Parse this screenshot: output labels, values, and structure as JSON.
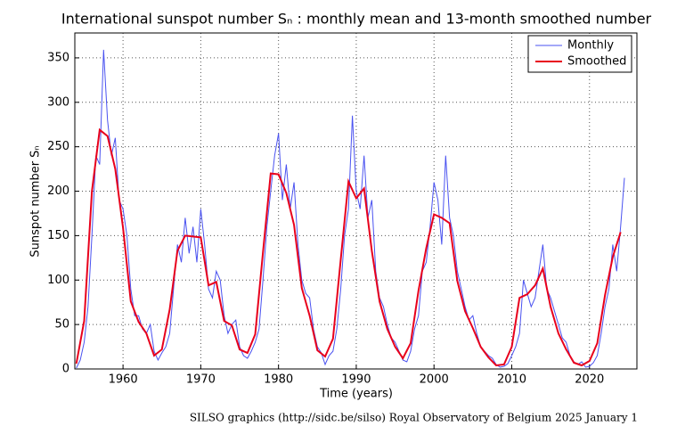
{
  "chart_data": {
    "type": "line",
    "title": "International sunspot number Sₙ : monthly mean and 13-month smoothed number",
    "x_label": "Time (years)",
    "y_label": "Sunspot number Sₙ",
    "footer": "SILSO graphics (http://sidc.be/silso)  Royal Observatory of Belgium  2025 January 1",
    "xlim": [
      1953.8,
      2026.1
    ],
    "ylim": [
      0,
      378
    ],
    "xticks": [
      1960,
      1970,
      1980,
      1990,
      2000,
      2010,
      2020
    ],
    "yticks": [
      0,
      50,
      100,
      150,
      200,
      250,
      300,
      350
    ],
    "grid": true,
    "legend": "upper right",
    "series": [
      {
        "name": "Monthly",
        "color": "#4a52f0",
        "x": [
          1954,
          1954.5,
          1955,
          1955.5,
          1956,
          1956.5,
          1957,
          1957.5,
          1958,
          1958.5,
          1959,
          1959.5,
          1960,
          1960.5,
          1961,
          1961.5,
          1962,
          1962.5,
          1963,
          1963.5,
          1964,
          1964.5,
          1965,
          1965.5,
          1966,
          1966.5,
          1967,
          1967.5,
          1968,
          1968.5,
          1969,
          1969.5,
          1970,
          1970.5,
          1971,
          1971.5,
          1972,
          1972.5,
          1973,
          1973.5,
          1974,
          1974.5,
          1975,
          1975.5,
          1976,
          1976.5,
          1977,
          1977.5,
          1978,
          1978.5,
          1979,
          1979.5,
          1980,
          1980.5,
          1981,
          1981.5,
          1982,
          1982.5,
          1983,
          1983.5,
          1984,
          1984.5,
          1985,
          1985.5,
          1986,
          1986.5,
          1987,
          1987.5,
          1988,
          1988.5,
          1989,
          1989.5,
          1990,
          1990.5,
          1991,
          1991.5,
          1992,
          1992.5,
          1993,
          1993.5,
          1994,
          1994.5,
          1995,
          1995.5,
          1996,
          1996.5,
          1997,
          1997.5,
          1998,
          1998.5,
          1999,
          1999.5,
          2000,
          2000.5,
          2001,
          2001.5,
          2002,
          2002.5,
          2003,
          2003.5,
          2004,
          2004.5,
          2005,
          2005.5,
          2006,
          2006.5,
          2007,
          2007.5,
          2008,
          2008.5,
          2009,
          2009.5,
          2010,
          2010.5,
          2011,
          2011.5,
          2012,
          2012.5,
          2013,
          2013.5,
          2014,
          2014.5,
          2015,
          2015.5,
          2016,
          2016.5,
          2017,
          2017.5,
          2018,
          2018.5,
          2019,
          2019.5,
          2020,
          2020.5,
          2021,
          2021.5,
          2022,
          2022.5,
          2023,
          2023.5,
          2024,
          2024.5
        ],
        "values": [
          1,
          10,
          30,
          70,
          150,
          240,
          230,
          359,
          280,
          240,
          260,
          190,
          180,
          150,
          90,
          60,
          60,
          45,
          40,
          50,
          20,
          10,
          18,
          25,
          40,
          90,
          140,
          120,
          170,
          130,
          160,
          120,
          180,
          140,
          90,
          80,
          110,
          100,
          60,
          40,
          50,
          55,
          25,
          15,
          12,
          20,
          30,
          45,
          100,
          160,
          200,
          240,
          265,
          190,
          230,
          180,
          210,
          140,
          100,
          85,
          80,
          45,
          25,
          18,
          5,
          15,
          20,
          45,
          90,
          150,
          180,
          285,
          200,
          180,
          240,
          170,
          190,
          110,
          80,
          70,
          50,
          35,
          30,
          20,
          10,
          8,
          20,
          45,
          60,
          110,
          120,
          160,
          210,
          190,
          140,
          240,
          170,
          150,
          110,
          90,
          70,
          55,
          60,
          40,
          25,
          20,
          15,
          12,
          5,
          2,
          3,
          6,
          15,
          25,
          40,
          100,
          85,
          70,
          80,
          110,
          140,
          90,
          80,
          65,
          50,
          35,
          30,
          15,
          8,
          5,
          8,
          2,
          3,
          7,
          15,
          40,
          70,
          90,
          140,
          110,
          160,
          215
        ]
      },
      {
        "name": "Smoothed",
        "color": "#e8001c",
        "x": [
          1954,
          1955,
          1956,
          1957,
          1958,
          1959,
          1960,
          1961,
          1962,
          1963,
          1964,
          1965,
          1966,
          1967,
          1968,
          1969,
          1970,
          1971,
          1972,
          1973,
          1974,
          1975,
          1976,
          1977,
          1978,
          1979,
          1980,
          1981,
          1982,
          1983,
          1984,
          1985,
          1986,
          1987,
          1988,
          1989,
          1990,
          1991,
          1992,
          1993,
          1994,
          1995,
          1996,
          1997,
          1998,
          1999,
          2000,
          2001,
          2002,
          2003,
          2004,
          2005,
          2006,
          2007,
          2008,
          2009,
          2010,
          2011,
          2012,
          2013,
          2014,
          2015,
          2016,
          2017,
          2018,
          2019,
          2020,
          2021,
          2022,
          2023,
          2024
        ],
        "values": [
          6,
          54,
          200,
          269,
          262,
          225,
          159,
          76,
          53,
          40,
          15,
          22,
          67,
          133,
          150,
          149,
          148,
          94,
          98,
          54,
          49,
          22,
          18,
          39,
          131,
          220,
          219,
          198,
          162,
          91,
          60,
          21,
          14,
          34,
          123,
          211,
          192,
          203,
          133,
          76,
          45,
          25,
          12,
          29,
          88,
          136,
          174,
          170,
          164,
          99,
          65,
          46,
          25,
          13,
          4,
          5,
          25,
          80,
          84,
          94,
          113,
          70,
          40,
          22,
          7,
          4,
          9,
          29,
          83,
          126,
          154
        ]
      }
    ]
  }
}
